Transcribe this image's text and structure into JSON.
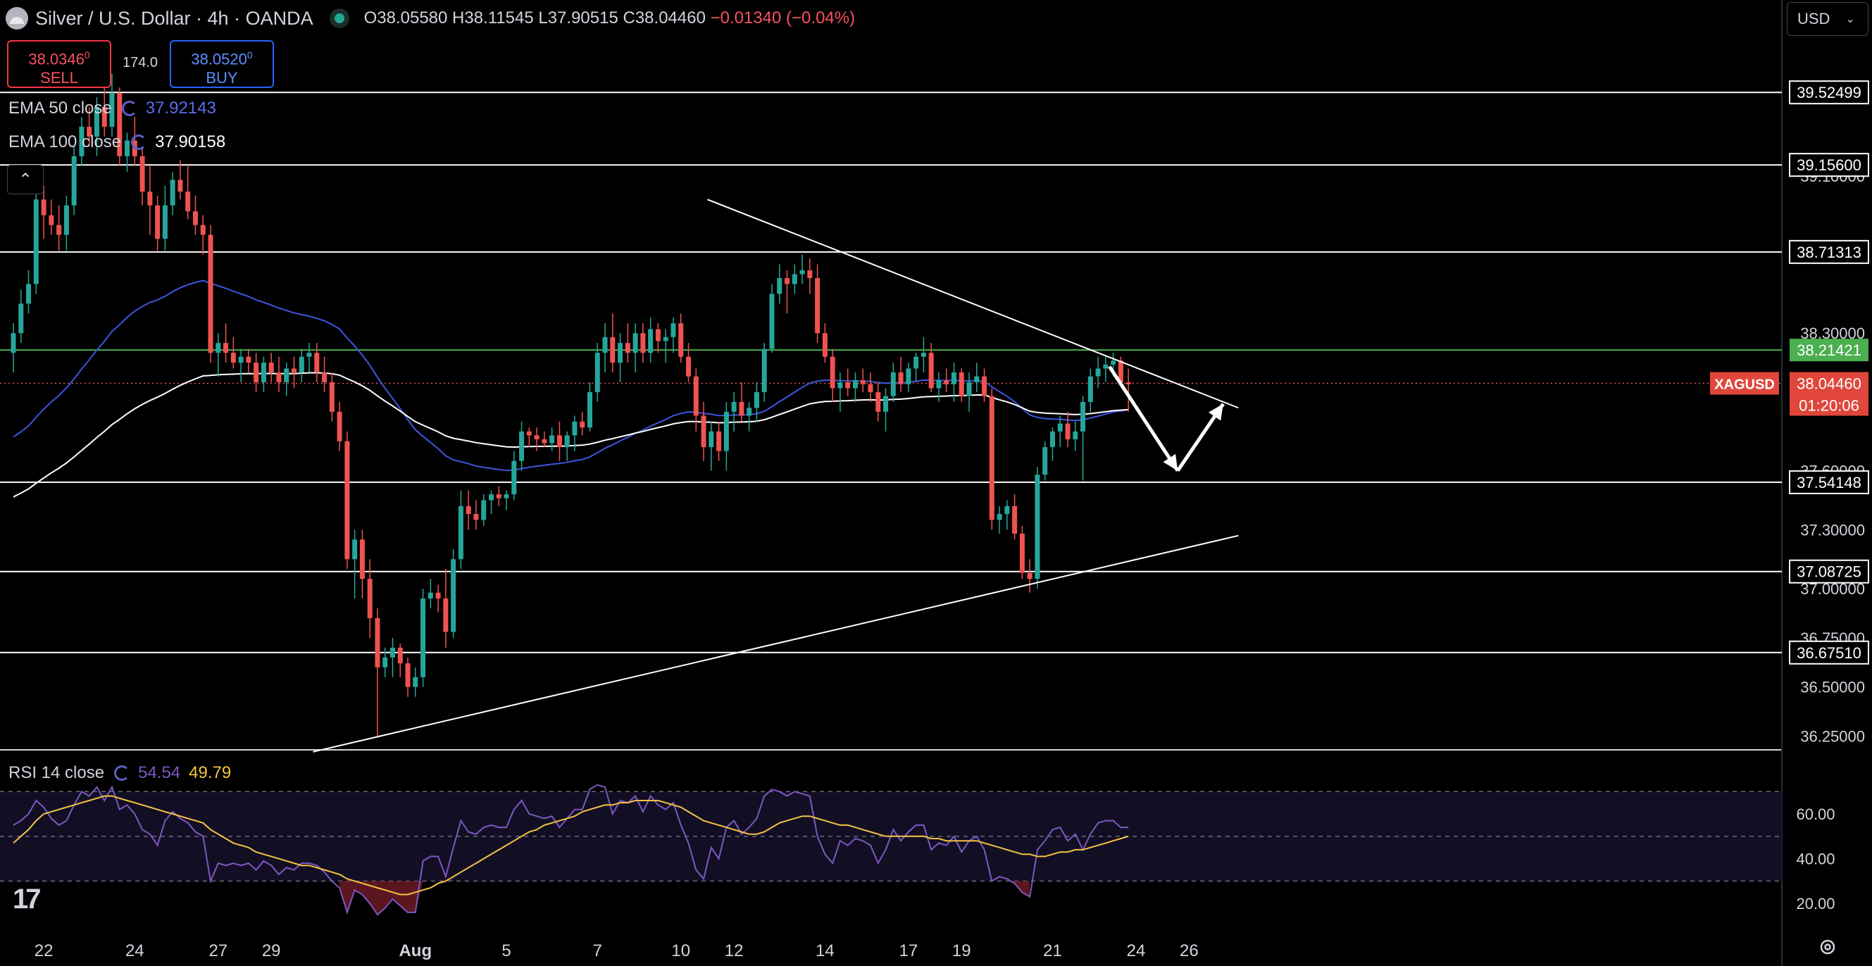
{
  "header": {
    "symbol_title": "Silver / U.S. Dollar · 4h · OANDA",
    "open": "O38.05580",
    "high": "H38.11545",
    "low": "L37.90515",
    "close": "C38.04460",
    "change": "−0.01340 (−0.04%)"
  },
  "trade": {
    "sell_price": "38.0346",
    "sell_sup": "0",
    "sell_label": "SELL",
    "buy_price": "38.0520",
    "buy_sup": "0",
    "buy_label": "BUY",
    "spread": "174.0"
  },
  "indicators": {
    "ema50_label": "EMA 50 close",
    "ema50_value": "37.92143",
    "ema100_label": "EMA 100 close",
    "ema100_value": "37.90158",
    "rsi_label": "RSI 14 close",
    "rsi_value": "54.54",
    "rsi_ma_value": "49.79"
  },
  "currency_select": "USD",
  "colors": {
    "up": "#26a69a",
    "down": "#ef5350",
    "ema50": "#3d55e0",
    "ema100": "#ffffff",
    "rsi": "#7e57c2",
    "rsi_ma": "#f6c343",
    "hline": "#ffffff",
    "green_line": "#4caf50"
  },
  "chart_data": {
    "type": "candlestick",
    "symbol_tag": "XAGUSD",
    "current_price": "38.04460",
    "countdown": "01:20:06",
    "ylim": [
      36.18,
      39.78
    ],
    "y_ticks": [
      "39.10000",
      "38.30000",
      "37.60000",
      "37.30000",
      "37.00000",
      "36.75000",
      "36.50000",
      "36.25000"
    ],
    "x_ticks": [
      {
        "label": "22",
        "i": 4
      },
      {
        "label": "24",
        "i": 16
      },
      {
        "label": "27",
        "i": 27
      },
      {
        "label": "29",
        "i": 34
      },
      {
        "label": "Aug",
        "i": 53
      },
      {
        "label": "5",
        "i": 65
      },
      {
        "label": "7",
        "i": 77
      },
      {
        "label": "10",
        "i": 88
      },
      {
        "label": "12",
        "i": 95
      },
      {
        "label": "14",
        "i": 107
      },
      {
        "label": "17",
        "i": 118
      },
      {
        "label": "19",
        "i": 125
      },
      {
        "label": "21",
        "i": 137
      },
      {
        "label": "24",
        "i": 148
      },
      {
        "label": "26",
        "i": 155
      }
    ],
    "horizontal_levels": [
      {
        "value": 39.52499,
        "label": "39.52499"
      },
      {
        "value": 39.156,
        "label": "39.15600"
      },
      {
        "value": 38.71313,
        "label": "38.71313"
      },
      {
        "value": 37.54148,
        "label": "37.54148"
      },
      {
        "value": 37.08725,
        "label": "37.08725"
      },
      {
        "value": 36.6751,
        "label": "36.67510"
      }
    ],
    "green_level": {
      "value": 38.21421,
      "label": "38.21421"
    },
    "trendlines": [
      {
        "from": {
          "i": 91.5,
          "y": 38.98
        },
        "to": {
          "i": 161.5,
          "y": 37.92
        }
      },
      {
        "from": {
          "i": 39.5,
          "y": 36.17
        },
        "to": {
          "i": 161.5,
          "y": 37.27
        }
      }
    ],
    "projection_arrows": [
      {
        "from": {
          "i": 144.5,
          "y": 38.13
        },
        "to": {
          "i": 153.5,
          "y": 37.6
        }
      },
      {
        "from": {
          "i": 153.5,
          "y": 37.6
        },
        "to": {
          "i": 159.5,
          "y": 37.94
        }
      }
    ],
    "candles": [
      [
        38.2,
        38.35,
        38.1,
        38.3
      ],
      [
        38.3,
        38.52,
        38.25,
        38.45
      ],
      [
        38.45,
        38.62,
        38.4,
        38.55
      ],
      [
        38.55,
        39.05,
        38.5,
        38.98
      ],
      [
        38.98,
        39.05,
        38.78,
        38.9
      ],
      [
        38.9,
        38.98,
        38.8,
        38.85
      ],
      [
        38.85,
        38.95,
        38.72,
        38.8
      ],
      [
        38.8,
        39.0,
        38.72,
        38.95
      ],
      [
        38.95,
        39.25,
        38.9,
        39.2
      ],
      [
        39.2,
        39.4,
        39.15,
        39.35
      ],
      [
        39.35,
        39.45,
        39.25,
        39.3
      ],
      [
        39.3,
        39.5,
        39.2,
        39.45
      ],
      [
        39.45,
        39.55,
        39.3,
        39.35
      ],
      [
        39.35,
        39.62,
        39.3,
        39.52
      ],
      [
        39.52,
        39.55,
        39.15,
        39.2
      ],
      [
        39.2,
        39.32,
        39.12,
        39.28
      ],
      [
        39.28,
        39.4,
        39.15,
        39.2
      ],
      [
        39.2,
        39.25,
        38.95,
        39.02
      ],
      [
        39.02,
        39.15,
        38.8,
        38.95
      ],
      [
        38.95,
        39.0,
        38.72,
        38.78
      ],
      [
        38.78,
        39.05,
        38.72,
        38.95
      ],
      [
        38.95,
        39.12,
        38.9,
        39.08
      ],
      [
        39.08,
        39.18,
        38.98,
        39.02
      ],
      [
        39.02,
        39.15,
        38.88,
        38.92
      ],
      [
        38.92,
        39.0,
        38.8,
        38.85
      ],
      [
        38.85,
        38.9,
        38.7,
        38.8
      ],
      [
        38.8,
        38.85,
        38.15,
        38.2
      ],
      [
        38.2,
        38.3,
        38.08,
        38.25
      ],
      [
        38.25,
        38.35,
        38.15,
        38.2
      ],
      [
        38.2,
        38.28,
        38.12,
        38.15
      ],
      [
        38.15,
        38.22,
        38.05,
        38.18
      ],
      [
        38.18,
        38.22,
        38.1,
        38.15
      ],
      [
        38.15,
        38.2,
        38.0,
        38.05
      ],
      [
        38.05,
        38.18,
        38.0,
        38.15
      ],
      [
        38.15,
        38.2,
        38.05,
        38.1
      ],
      [
        38.1,
        38.18,
        38.0,
        38.05
      ],
      [
        38.05,
        38.15,
        37.98,
        38.12
      ],
      [
        38.12,
        38.18,
        38.02,
        38.1
      ],
      [
        38.1,
        38.22,
        38.05,
        38.18
      ],
      [
        38.18,
        38.25,
        38.1,
        38.2
      ],
      [
        38.2,
        38.25,
        38.05,
        38.1
      ],
      [
        38.1,
        38.18,
        38.0,
        38.05
      ],
      [
        38.05,
        38.1,
        37.85,
        37.9
      ],
      [
        37.9,
        37.95,
        37.7,
        37.75
      ],
      [
        37.75,
        37.8,
        37.1,
        37.15
      ],
      [
        37.15,
        37.3,
        36.95,
        37.25
      ],
      [
        37.25,
        37.3,
        36.95,
        37.05
      ],
      [
        37.05,
        37.15,
        36.75,
        36.85
      ],
      [
        36.85,
        36.9,
        36.25,
        36.6
      ],
      [
        36.6,
        36.7,
        36.55,
        36.65
      ],
      [
        36.65,
        36.75,
        36.55,
        36.7
      ],
      [
        36.7,
        36.72,
        36.55,
        36.62
      ],
      [
        36.62,
        36.65,
        36.45,
        36.5
      ],
      [
        36.5,
        36.6,
        36.45,
        36.55
      ],
      [
        36.55,
        37.0,
        36.5,
        36.95
      ],
      [
        36.95,
        37.05,
        36.9,
        36.98
      ],
      [
        36.98,
        37.02,
        36.88,
        36.95
      ],
      [
        36.95,
        37.1,
        36.7,
        36.78
      ],
      [
        36.78,
        37.2,
        36.75,
        37.15
      ],
      [
        37.15,
        37.5,
        37.1,
        37.42
      ],
      [
        37.42,
        37.5,
        37.3,
        37.38
      ],
      [
        37.38,
        37.45,
        37.3,
        37.35
      ],
      [
        37.35,
        37.48,
        37.32,
        37.45
      ],
      [
        37.45,
        37.5,
        37.38,
        37.48
      ],
      [
        37.48,
        37.52,
        37.42,
        37.46
      ],
      [
        37.46,
        37.5,
        37.4,
        37.48
      ],
      [
        37.48,
        37.7,
        37.45,
        37.65
      ],
      [
        37.65,
        37.85,
        37.6,
        37.8
      ],
      [
        37.8,
        37.82,
        37.72,
        37.78
      ],
      [
        37.78,
        37.82,
        37.7,
        37.76
      ],
      [
        37.76,
        37.8,
        37.72,
        37.74
      ],
      [
        37.74,
        37.82,
        37.7,
        37.78
      ],
      [
        37.78,
        37.85,
        37.65,
        37.72
      ],
      [
        37.72,
        37.8,
        37.65,
        37.78
      ],
      [
        37.78,
        37.88,
        37.7,
        37.85
      ],
      [
        37.85,
        37.9,
        37.78,
        37.82
      ],
      [
        37.82,
        38.05,
        37.8,
        38.0
      ],
      [
        38.0,
        38.25,
        37.95,
        38.2
      ],
      [
        38.2,
        38.35,
        38.1,
        38.28
      ],
      [
        38.28,
        38.4,
        38.1,
        38.15
      ],
      [
        38.15,
        38.3,
        38.05,
        38.25
      ],
      [
        38.25,
        38.35,
        38.15,
        38.2
      ],
      [
        38.2,
        38.35,
        38.1,
        38.3
      ],
      [
        38.3,
        38.35,
        38.15,
        38.2
      ],
      [
        38.2,
        38.38,
        38.15,
        38.32
      ],
      [
        38.32,
        38.35,
        38.2,
        38.26
      ],
      [
        38.26,
        38.32,
        38.15,
        38.28
      ],
      [
        38.28,
        38.38,
        38.2,
        38.35
      ],
      [
        38.35,
        38.4,
        38.15,
        38.18
      ],
      [
        38.18,
        38.25,
        38.05,
        38.08
      ],
      [
        38.08,
        38.12,
        37.8,
        37.88
      ],
      [
        37.88,
        37.95,
        37.65,
        37.72
      ],
      [
        37.72,
        37.85,
        37.6,
        37.8
      ],
      [
        37.8,
        37.85,
        37.65,
        37.7
      ],
      [
        37.7,
        37.95,
        37.6,
        37.9
      ],
      [
        37.9,
        38.0,
        37.8,
        37.95
      ],
      [
        37.95,
        38.05,
        37.85,
        37.88
      ],
      [
        37.88,
        37.95,
        37.8,
        37.92
      ],
      [
        37.92,
        38.05,
        37.85,
        38.0
      ],
      [
        38.0,
        38.25,
        37.95,
        38.22
      ],
      [
        38.22,
        38.55,
        38.2,
        38.5
      ],
      [
        38.5,
        38.65,
        38.45,
        38.58
      ],
      [
        38.58,
        38.62,
        38.4,
        38.55
      ],
      [
        38.55,
        38.65,
        38.5,
        38.6
      ],
      [
        38.6,
        38.7,
        38.55,
        38.62
      ],
      [
        38.62,
        38.68,
        38.5,
        38.58
      ],
      [
        38.58,
        38.65,
        38.25,
        38.3
      ],
      [
        38.3,
        38.35,
        38.15,
        38.18
      ],
      [
        38.18,
        38.22,
        37.95,
        38.02
      ],
      [
        38.02,
        38.1,
        37.9,
        38.05
      ],
      [
        38.05,
        38.12,
        37.98,
        38.02
      ],
      [
        38.02,
        38.1,
        37.95,
        38.06
      ],
      [
        38.06,
        38.12,
        38.0,
        38.04
      ],
      [
        38.04,
        38.1,
        37.95,
        38.0
      ],
      [
        38.0,
        38.05,
        37.85,
        37.9
      ],
      [
        37.9,
        38.02,
        37.8,
        37.98
      ],
      [
        37.98,
        38.15,
        37.95,
        38.1
      ],
      [
        38.1,
        38.18,
        38.0,
        38.04
      ],
      [
        38.04,
        38.15,
        38.0,
        38.12
      ],
      [
        38.12,
        38.2,
        38.05,
        38.18
      ],
      [
        38.18,
        38.28,
        38.1,
        38.2
      ],
      [
        38.2,
        38.25,
        38.0,
        38.02
      ],
      [
        38.02,
        38.1,
        37.95,
        38.06
      ],
      [
        38.06,
        38.12,
        38.0,
        38.04
      ],
      [
        38.04,
        38.15,
        37.95,
        38.1
      ],
      [
        38.1,
        38.12,
        37.95,
        37.98
      ],
      [
        37.98,
        38.1,
        37.9,
        38.05
      ],
      [
        38.05,
        38.15,
        38.0,
        38.08
      ],
      [
        38.08,
        38.12,
        37.95,
        37.98
      ],
      [
        37.98,
        38.02,
        37.3,
        37.35
      ],
      [
        37.35,
        37.42,
        37.28,
        37.38
      ],
      [
        37.38,
        37.45,
        37.3,
        37.42
      ],
      [
        37.42,
        37.48,
        37.25,
        37.28
      ],
      [
        37.28,
        37.32,
        37.05,
        37.08
      ],
      [
        37.08,
        37.15,
        36.98,
        37.05
      ],
      [
        37.05,
        37.62,
        37.0,
        37.58
      ],
      [
        37.58,
        37.75,
        37.55,
        37.72
      ],
      [
        37.72,
        37.82,
        37.65,
        37.8
      ],
      [
        37.8,
        37.88,
        37.72,
        37.84
      ],
      [
        37.84,
        37.9,
        37.72,
        37.76
      ],
      [
        37.76,
        37.85,
        37.7,
        37.8
      ],
      [
        37.8,
        37.98,
        37.55,
        37.95
      ],
      [
        37.95,
        38.12,
        37.9,
        38.08
      ],
      [
        38.08,
        38.18,
        38.02,
        38.12
      ],
      [
        38.12,
        38.18,
        38.05,
        38.14
      ],
      [
        38.14,
        38.2,
        38.08,
        38.16
      ],
      [
        38.16,
        38.18,
        38.04,
        38.05
      ],
      [
        38.05,
        38.12,
        37.9,
        38.04
      ]
    ],
    "rsi": [
      55,
      57,
      60,
      66,
      63,
      58,
      55,
      57,
      64,
      70,
      68,
      72,
      66,
      72,
      62,
      64,
      60,
      53,
      51,
      46,
      57,
      61,
      58,
      56,
      52,
      50,
      30,
      38,
      37,
      38,
      37,
      38,
      35,
      39,
      37,
      33,
      36,
      35,
      38,
      38,
      37,
      34,
      30,
      27,
      16,
      26,
      24,
      20,
      15,
      18,
      22,
      19,
      16,
      16,
      39,
      41,
      41,
      32,
      45,
      57,
      52,
      51,
      54,
      55,
      54,
      54,
      62,
      66,
      60,
      59,
      58,
      59,
      54,
      58,
      62,
      62,
      71,
      73,
      72,
      60,
      66,
      65,
      68,
      61,
      68,
      64,
      62,
      65,
      55,
      47,
      35,
      31,
      45,
      40,
      54,
      57,
      51,
      54,
      58,
      68,
      71,
      70,
      68,
      70,
      69,
      68,
      50,
      42,
      38,
      48,
      46,
      49,
      48,
      46,
      38,
      44,
      53,
      48,
      52,
      55,
      55,
      44,
      47,
      46,
      50,
      43,
      48,
      50,
      44,
      30,
      32,
      31,
      29,
      25,
      23,
      44,
      48,
      53,
      54,
      48,
      51,
      44,
      51,
      56,
      57,
      57,
      54,
      54
    ],
    "rsi_ma": [
      47,
      50,
      53,
      57,
      60,
      61,
      62,
      63,
      64,
      65,
      66,
      67,
      68,
      68,
      67,
      66,
      65,
      64,
      63,
      62,
      61,
      60,
      59,
      58,
      57,
      56,
      53,
      51,
      49,
      47,
      46,
      45,
      43,
      42,
      41,
      40,
      39,
      38,
      37,
      37,
      36,
      35,
      34,
      33,
      31,
      30,
      29,
      28,
      27,
      26,
      25,
      24,
      24,
      25,
      26,
      27,
      29,
      30,
      32,
      34,
      36,
      38,
      40,
      42,
      44,
      46,
      48,
      50,
      52,
      53,
      55,
      56,
      57,
      58,
      59,
      61,
      62,
      63,
      64,
      64,
      65,
      65,
      66,
      66,
      66,
      66,
      65,
      64,
      63,
      61,
      59,
      57,
      56,
      55,
      54,
      53,
      52,
      51,
      51,
      52,
      54,
      56,
      57,
      58,
      59,
      59,
      58,
      57,
      56,
      55,
      55,
      54,
      53,
      52,
      51,
      50,
      50,
      50,
      50,
      50,
      50,
      49,
      49,
      48,
      48,
      48,
      48,
      48,
      47,
      46,
      45,
      44,
      43,
      42,
      42,
      41,
      41,
      42,
      43,
      43,
      44,
      44,
      45,
      46,
      47,
      48,
      49,
      50
    ],
    "rsi_axis": {
      "ticks": [
        "60.00",
        "40.00",
        "20.00"
      ],
      "levels": [
        70,
        50,
        30
      ],
      "ylim": [
        10,
        77
      ]
    }
  }
}
